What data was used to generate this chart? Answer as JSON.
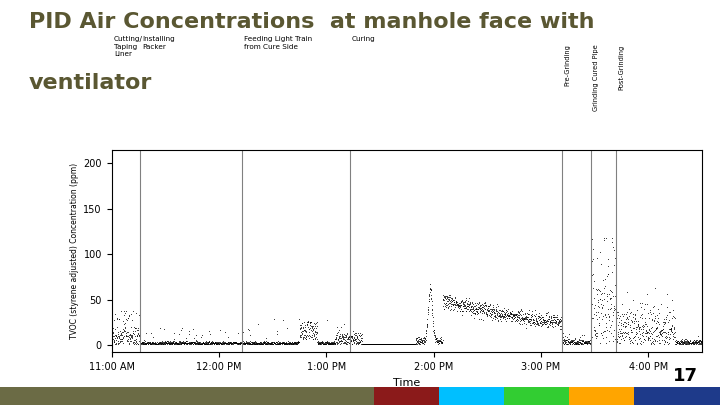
{
  "title_line1": "PID Air Concentrations  at manhole face with",
  "title_line2": "ventilator",
  "title_color": "#5a5732",
  "title_fontsize": 16,
  "xlabel": "Time",
  "ylabel": "TVOC (styrene adjusted) Concentration (ppm)",
  "ylim": [
    -8,
    215
  ],
  "yticks": [
    0,
    50,
    100,
    150,
    200
  ],
  "background_color": "#ffffff",
  "plot_bg_color": "#ffffff",
  "time_labels": [
    "11:00 AM",
    "12:00 PM",
    "1:00 PM",
    "2:00 PM",
    "3:00 PM",
    "4:00 PM"
  ],
  "time_values": [
    0,
    60,
    120,
    180,
    240,
    300
  ],
  "phase_line_positions": [
    16,
    73,
    133,
    252,
    268,
    282
  ],
  "phase_labels_horizontal": [
    {
      "x": 0,
      "text": "Cutting/\nTaping\nLiner"
    },
    {
      "x": 16,
      "text": "Installing\nPacker"
    },
    {
      "x": 73,
      "text": "Feeding Light Train\nfrom Cure Side"
    },
    {
      "x": 133,
      "text": "Curing"
    }
  ],
  "phase_labels_vertical": [
    {
      "x": 252,
      "text": "Pre-Grinding"
    },
    {
      "x": 268,
      "text": "Grinding Cured Pipe"
    },
    {
      "x": 282,
      "text": "Post-Grinding"
    }
  ],
  "footer_colors": [
    "#6b6b45",
    "#8b1a1a",
    "#00bfff",
    "#32cd32",
    "#ffa500",
    "#1e3a8a"
  ],
  "footer_widths": [
    0.52,
    0.09,
    0.09,
    0.09,
    0.09,
    0.12
  ],
  "slide_number": "17"
}
